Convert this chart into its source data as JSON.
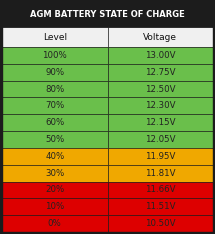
{
  "title": "AGM BATTERY STATE OF CHARGE",
  "header_bg": "#1c1c1c",
  "header_text_color": "#ffffff",
  "col_header_bg": "#f0f0f0",
  "col_header_text": "#111111",
  "columns": [
    "Level",
    "Voltage"
  ],
  "rows": [
    {
      "level": "100%",
      "voltage": "13.00V",
      "color": "#6abf4b"
    },
    {
      "level": "90%",
      "voltage": "12.75V",
      "color": "#6abf4b"
    },
    {
      "level": "80%",
      "voltage": "12.50V",
      "color": "#6abf4b"
    },
    {
      "level": "70%",
      "voltage": "12.30V",
      "color": "#6abf4b"
    },
    {
      "level": "60%",
      "voltage": "12.15V",
      "color": "#6abf4b"
    },
    {
      "level": "50%",
      "voltage": "12.05V",
      "color": "#6abf4b"
    },
    {
      "level": "40%",
      "voltage": "11.95V",
      "color": "#f0a800"
    },
    {
      "level": "30%",
      "voltage": "11.81V",
      "color": "#f0a800"
    },
    {
      "level": "20%",
      "voltage": "11.66V",
      "color": "#dd0000"
    },
    {
      "level": "10%",
      "voltage": "11.51V",
      "color": "#dd0000"
    },
    {
      "level": "0%",
      "voltage": "10.50V",
      "color": "#dd0000"
    }
  ],
  "row_text_color": "#222222",
  "border_color": "#1c1c1c",
  "title_fontsize": 6.0,
  "cell_fontsize": 6.2,
  "header_fontsize": 6.5
}
